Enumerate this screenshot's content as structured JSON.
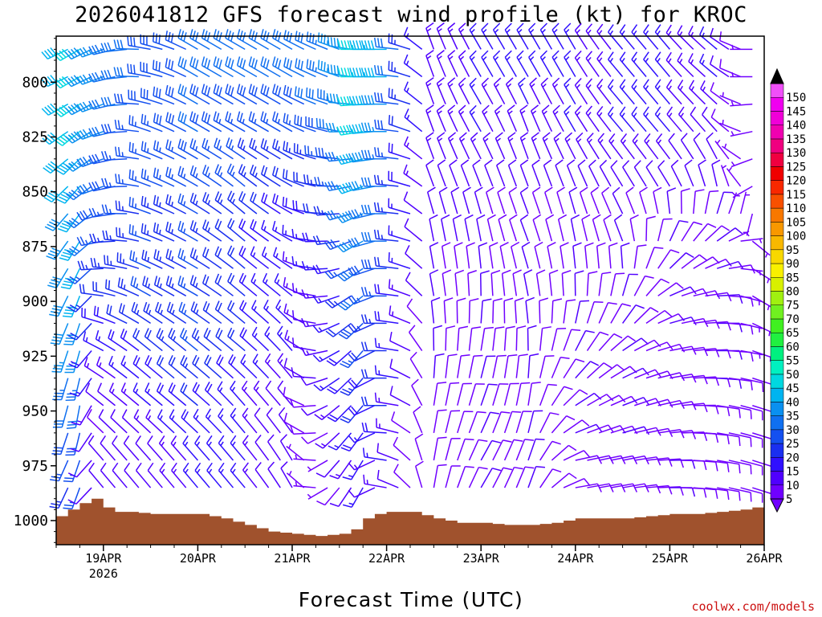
{
  "title": "2026041812 GFS forecast wind profile (kt) for KROC",
  "credit": "coolwx.com/models",
  "chart_data": {
    "type": "wind-barb profile",
    "title": "2026041812 GFS forecast wind profile (kt) for KROC",
    "xlabel": "Forecast Time (UTC)",
    "ylabel": "",
    "x_ticks": [
      {
        "hour": 12,
        "label": "19APR",
        "sublabel": "2026"
      },
      {
        "hour": 36,
        "label": "20APR"
      },
      {
        "hour": 60,
        "label": "21APR"
      },
      {
        "hour": 84,
        "label": "22APR"
      },
      {
        "hour": 108,
        "label": "23APR"
      },
      {
        "hour": 132,
        "label": "24APR"
      },
      {
        "hour": 156,
        "label": "25APR"
      },
      {
        "hour": 180,
        "label": "26APR"
      }
    ],
    "xlim_hours": [
      0,
      180
    ],
    "y_ticks": [
      800,
      825,
      850,
      875,
      900,
      925,
      950,
      975,
      1000
    ],
    "ylim_hPa": [
      779,
      1011
    ],
    "speed_colorbar": {
      "unit": "kt",
      "levels": [
        5,
        10,
        15,
        20,
        25,
        30,
        35,
        40,
        45,
        50,
        55,
        60,
        65,
        70,
        75,
        80,
        85,
        90,
        95,
        100,
        105,
        110,
        115,
        120,
        125,
        130,
        135,
        140,
        145,
        150
      ],
      "colors": [
        "#7000ff",
        "#5000ff",
        "#3010ff",
        "#1a2ff0",
        "#1450f0",
        "#1070f0",
        "#0a90f0",
        "#00b4f0",
        "#00d8e0",
        "#00f0c0",
        "#00f080",
        "#20f040",
        "#40f020",
        "#70f020",
        "#a0f010",
        "#d8f000",
        "#f8f000",
        "#f8d800",
        "#f8b800",
        "#f89800",
        "#f87800",
        "#f85000",
        "#f82800",
        "#f00000",
        "#f00040",
        "#f00080",
        "#f000b0",
        "#f000d8",
        "#f000f0",
        "#f050f8"
      ]
    },
    "surface_pressure": {
      "hours": [
        0,
        6,
        9,
        12,
        15,
        18,
        24,
        30,
        36,
        42,
        48,
        54,
        60,
        66,
        72,
        75,
        78,
        81,
        84,
        87,
        90,
        96,
        102,
        108,
        114,
        120,
        126,
        132,
        138,
        144,
        150,
        156,
        162,
        168,
        174,
        180
      ],
      "hPa": [
        998,
        992,
        990,
        994,
        996,
        996,
        997,
        997,
        997,
        999,
        1002,
        1005,
        1006,
        1007,
        1006,
        1004,
        999,
        997,
        996,
        996,
        996,
        999,
        1001,
        1001,
        1002,
        1002,
        1001,
        999,
        999,
        999,
        998,
        997,
        997,
        996,
        995,
        993
      ]
    },
    "wind_profiles": [
      {
        "hour": 0,
        "levels": [
          {
            "p": 800,
            "dir": 250,
            "spd": 40
          },
          {
            "p": 825,
            "dir": 240,
            "spd": 40
          },
          {
            "p": 850,
            "dir": 230,
            "spd": 40
          },
          {
            "p": 875,
            "dir": 220,
            "spd": 40
          },
          {
            "p": 900,
            "dir": 210,
            "spd": 40
          },
          {
            "p": 925,
            "dir": 200,
            "spd": 35
          },
          {
            "p": 950,
            "dir": 200,
            "spd": 30
          },
          {
            "p": 975,
            "dir": 210,
            "spd": 25
          }
        ]
      },
      {
        "hour": 6,
        "levels": [
          {
            "p": 800,
            "dir": 240,
            "spd": 45
          },
          {
            "p": 825,
            "dir": 230,
            "spd": 45
          },
          {
            "p": 850,
            "dir": 220,
            "spd": 40
          },
          {
            "p": 875,
            "dir": 210,
            "spd": 40
          },
          {
            "p": 900,
            "dir": 200,
            "spd": 40
          },
          {
            "p": 925,
            "dir": 195,
            "spd": 35
          },
          {
            "p": 950,
            "dir": 190,
            "spd": 30
          },
          {
            "p": 975,
            "dir": 200,
            "spd": 25
          }
        ]
      },
      {
        "hour": 12,
        "levels": [
          {
            "p": 800,
            "dir": 250,
            "spd": 35
          },
          {
            "p": 825,
            "dir": 250,
            "spd": 35
          },
          {
            "p": 850,
            "dir": 250,
            "spd": 30
          },
          {
            "p": 875,
            "dir": 260,
            "spd": 25
          },
          {
            "p": 900,
            "dir": 280,
            "spd": 20
          },
          {
            "p": 925,
            "dir": 300,
            "spd": 15
          },
          {
            "p": 950,
            "dir": 310,
            "spd": 10
          },
          {
            "p": 975,
            "dir": 320,
            "spd": 10
          }
        ]
      },
      {
        "hour": 24,
        "levels": [
          {
            "p": 800,
            "dir": 280,
            "spd": 30
          },
          {
            "p": 825,
            "dir": 290,
            "spd": 25
          },
          {
            "p": 850,
            "dir": 290,
            "spd": 25
          },
          {
            "p": 875,
            "dir": 290,
            "spd": 25
          },
          {
            "p": 900,
            "dir": 300,
            "spd": 25
          },
          {
            "p": 925,
            "dir": 310,
            "spd": 20
          },
          {
            "p": 950,
            "dir": 310,
            "spd": 15
          },
          {
            "p": 975,
            "dir": 320,
            "spd": 10
          }
        ]
      },
      {
        "hour": 36,
        "levels": [
          {
            "p": 800,
            "dir": 300,
            "spd": 30
          },
          {
            "p": 825,
            "dir": 300,
            "spd": 30
          },
          {
            "p": 850,
            "dir": 300,
            "spd": 25
          },
          {
            "p": 875,
            "dir": 300,
            "spd": 25
          },
          {
            "p": 900,
            "dir": 300,
            "spd": 25
          },
          {
            "p": 925,
            "dir": 310,
            "spd": 25
          },
          {
            "p": 950,
            "dir": 310,
            "spd": 20
          },
          {
            "p": 975,
            "dir": 320,
            "spd": 15
          }
        ]
      },
      {
        "hour": 48,
        "levels": [
          {
            "p": 800,
            "dir": 300,
            "spd": 30
          },
          {
            "p": 825,
            "dir": 300,
            "spd": 25
          },
          {
            "p": 850,
            "dir": 310,
            "spd": 25
          },
          {
            "p": 875,
            "dir": 310,
            "spd": 20
          },
          {
            "p": 900,
            "dir": 310,
            "spd": 20
          },
          {
            "p": 925,
            "dir": 310,
            "spd": 20
          },
          {
            "p": 950,
            "dir": 320,
            "spd": 15
          },
          {
            "p": 975,
            "dir": 320,
            "spd": 15
          }
        ]
      },
      {
        "hour": 60,
        "levels": [
          {
            "p": 800,
            "dir": 300,
            "spd": 30
          },
          {
            "p": 825,
            "dir": 300,
            "spd": 25
          },
          {
            "p": 850,
            "dir": 300,
            "spd": 20
          },
          {
            "p": 875,
            "dir": 300,
            "spd": 15
          },
          {
            "p": 900,
            "dir": 310,
            "spd": 15
          },
          {
            "p": 925,
            "dir": 320,
            "spd": 15
          },
          {
            "p": 950,
            "dir": 320,
            "spd": 10
          },
          {
            "p": 975,
            "dir": 330,
            "spd": 10
          }
        ]
      },
      {
        "hour": 72,
        "levels": [
          {
            "p": 800,
            "dir": 290,
            "spd": 35
          },
          {
            "p": 825,
            "dir": 280,
            "spd": 30
          },
          {
            "p": 850,
            "dir": 270,
            "spd": 25
          },
          {
            "p": 875,
            "dir": 260,
            "spd": 20
          },
          {
            "p": 900,
            "dir": 250,
            "spd": 15
          },
          {
            "p": 925,
            "dir": 240,
            "spd": 15
          },
          {
            "p": 950,
            "dir": 230,
            "spd": 15
          },
          {
            "p": 975,
            "dir": 220,
            "spd": 10
          }
        ]
      },
      {
        "hour": 78,
        "levels": [
          {
            "p": 800,
            "dir": 270,
            "spd": 45
          },
          {
            "p": 825,
            "dir": 260,
            "spd": 45
          },
          {
            "p": 850,
            "dir": 250,
            "spd": 40
          },
          {
            "p": 875,
            "dir": 240,
            "spd": 35
          },
          {
            "p": 900,
            "dir": 230,
            "spd": 30
          },
          {
            "p": 925,
            "dir": 220,
            "spd": 25
          },
          {
            "p": 950,
            "dir": 220,
            "spd": 20
          },
          {
            "p": 975,
            "dir": 210,
            "spd": 15
          }
        ]
      },
      {
        "hour": 84,
        "levels": [
          {
            "p": 800,
            "dir": 270,
            "spd": 40
          },
          {
            "p": 825,
            "dir": 270,
            "spd": 35
          },
          {
            "p": 850,
            "dir": 270,
            "spd": 30
          },
          {
            "p": 875,
            "dir": 270,
            "spd": 30
          },
          {
            "p": 900,
            "dir": 270,
            "spd": 25
          },
          {
            "p": 925,
            "dir": 270,
            "spd": 20
          },
          {
            "p": 950,
            "dir": 270,
            "spd": 20
          },
          {
            "p": 975,
            "dir": 280,
            "spd": 15
          }
        ]
      },
      {
        "hour": 96,
        "levels": [
          {
            "p": 800,
            "dir": 340,
            "spd": 15
          },
          {
            "p": 825,
            "dir": 340,
            "spd": 15
          },
          {
            "p": 850,
            "dir": 340,
            "spd": 10
          },
          {
            "p": 875,
            "dir": 350,
            "spd": 10
          },
          {
            "p": 900,
            "dir": 350,
            "spd": 10
          },
          {
            "p": 925,
            "dir": 360,
            "spd": 10
          },
          {
            "p": 950,
            "dir": 10,
            "spd": 10
          },
          {
            "p": 975,
            "dir": 10,
            "spd": 10
          }
        ]
      },
      {
        "hour": 108,
        "levels": [
          {
            "p": 800,
            "dir": 330,
            "spd": 15
          },
          {
            "p": 825,
            "dir": 330,
            "spd": 15
          },
          {
            "p": 850,
            "dir": 340,
            "spd": 10
          },
          {
            "p": 875,
            "dir": 350,
            "spd": 10
          },
          {
            "p": 900,
            "dir": 360,
            "spd": 10
          },
          {
            "p": 925,
            "dir": 10,
            "spd": 10
          },
          {
            "p": 950,
            "dir": 20,
            "spd": 10
          },
          {
            "p": 975,
            "dir": 30,
            "spd": 10
          }
        ]
      },
      {
        "hour": 120,
        "levels": [
          {
            "p": 800,
            "dir": 330,
            "spd": 15
          },
          {
            "p": 825,
            "dir": 340,
            "spd": 15
          },
          {
            "p": 850,
            "dir": 340,
            "spd": 10
          },
          {
            "p": 875,
            "dir": 340,
            "spd": 10
          },
          {
            "p": 900,
            "dir": 350,
            "spd": 10
          },
          {
            "p": 925,
            "dir": 360,
            "spd": 10
          },
          {
            "p": 950,
            "dir": 10,
            "spd": 10
          },
          {
            "p": 975,
            "dir": 20,
            "spd": 10
          }
        ]
      },
      {
        "hour": 132,
        "levels": [
          {
            "p": 800,
            "dir": 330,
            "spd": 15
          },
          {
            "p": 825,
            "dir": 330,
            "spd": 15
          },
          {
            "p": 850,
            "dir": 340,
            "spd": 10
          },
          {
            "p": 875,
            "dir": 350,
            "spd": 10
          },
          {
            "p": 900,
            "dir": 360,
            "spd": 10
          },
          {
            "p": 925,
            "dir": 30,
            "spd": 10
          },
          {
            "p": 950,
            "dir": 60,
            "spd": 10
          },
          {
            "p": 975,
            "dir": 80,
            "spd": 10
          }
        ]
      },
      {
        "hour": 144,
        "levels": [
          {
            "p": 800,
            "dir": 320,
            "spd": 15
          },
          {
            "p": 825,
            "dir": 320,
            "spd": 15
          },
          {
            "p": 850,
            "dir": 330,
            "spd": 10
          },
          {
            "p": 875,
            "dir": 340,
            "spd": 10
          },
          {
            "p": 900,
            "dir": 20,
            "spd": 10
          },
          {
            "p": 925,
            "dir": 60,
            "spd": 10
          },
          {
            "p": 950,
            "dir": 70,
            "spd": 10
          },
          {
            "p": 975,
            "dir": 80,
            "spd": 10
          }
        ]
      },
      {
        "hour": 156,
        "levels": [
          {
            "p": 800,
            "dir": 320,
            "spd": 15
          },
          {
            "p": 825,
            "dir": 320,
            "spd": 15
          },
          {
            "p": 850,
            "dir": 330,
            "spd": 10
          },
          {
            "p": 875,
            "dir": 30,
            "spd": 10
          },
          {
            "p": 900,
            "dir": 70,
            "spd": 10
          },
          {
            "p": 925,
            "dir": 80,
            "spd": 10
          },
          {
            "p": 950,
            "dir": 80,
            "spd": 10
          },
          {
            "p": 975,
            "dir": 90,
            "spd": 10
          }
        ]
      },
      {
        "hour": 168,
        "levels": [
          {
            "p": 800,
            "dir": 310,
            "spd": 15
          },
          {
            "p": 825,
            "dir": 320,
            "spd": 10
          },
          {
            "p": 850,
            "dir": 350,
            "spd": 10
          },
          {
            "p": 875,
            "dir": 60,
            "spd": 10
          },
          {
            "p": 900,
            "dir": 90,
            "spd": 10
          },
          {
            "p": 925,
            "dir": 90,
            "spd": 10
          },
          {
            "p": 950,
            "dir": 100,
            "spd": 10
          },
          {
            "p": 975,
            "dir": 100,
            "spd": 10
          }
        ]
      },
      {
        "hour": 180,
        "levels": [
          {
            "p": 800,
            "dir": 230,
            "spd": 5
          },
          {
            "p": 825,
            "dir": 220,
            "spd": 5
          },
          {
            "p": 850,
            "dir": 200,
            "spd": 5
          },
          {
            "p": 875,
            "dir": 160,
            "spd": 5
          },
          {
            "p": 900,
            "dir": 140,
            "spd": 5
          },
          {
            "p": 925,
            "dir": 120,
            "spd": 5
          },
          {
            "p": 950,
            "dir": 110,
            "spd": 10
          },
          {
            "p": 975,
            "dir": 110,
            "spd": 10
          }
        ]
      }
    ]
  }
}
